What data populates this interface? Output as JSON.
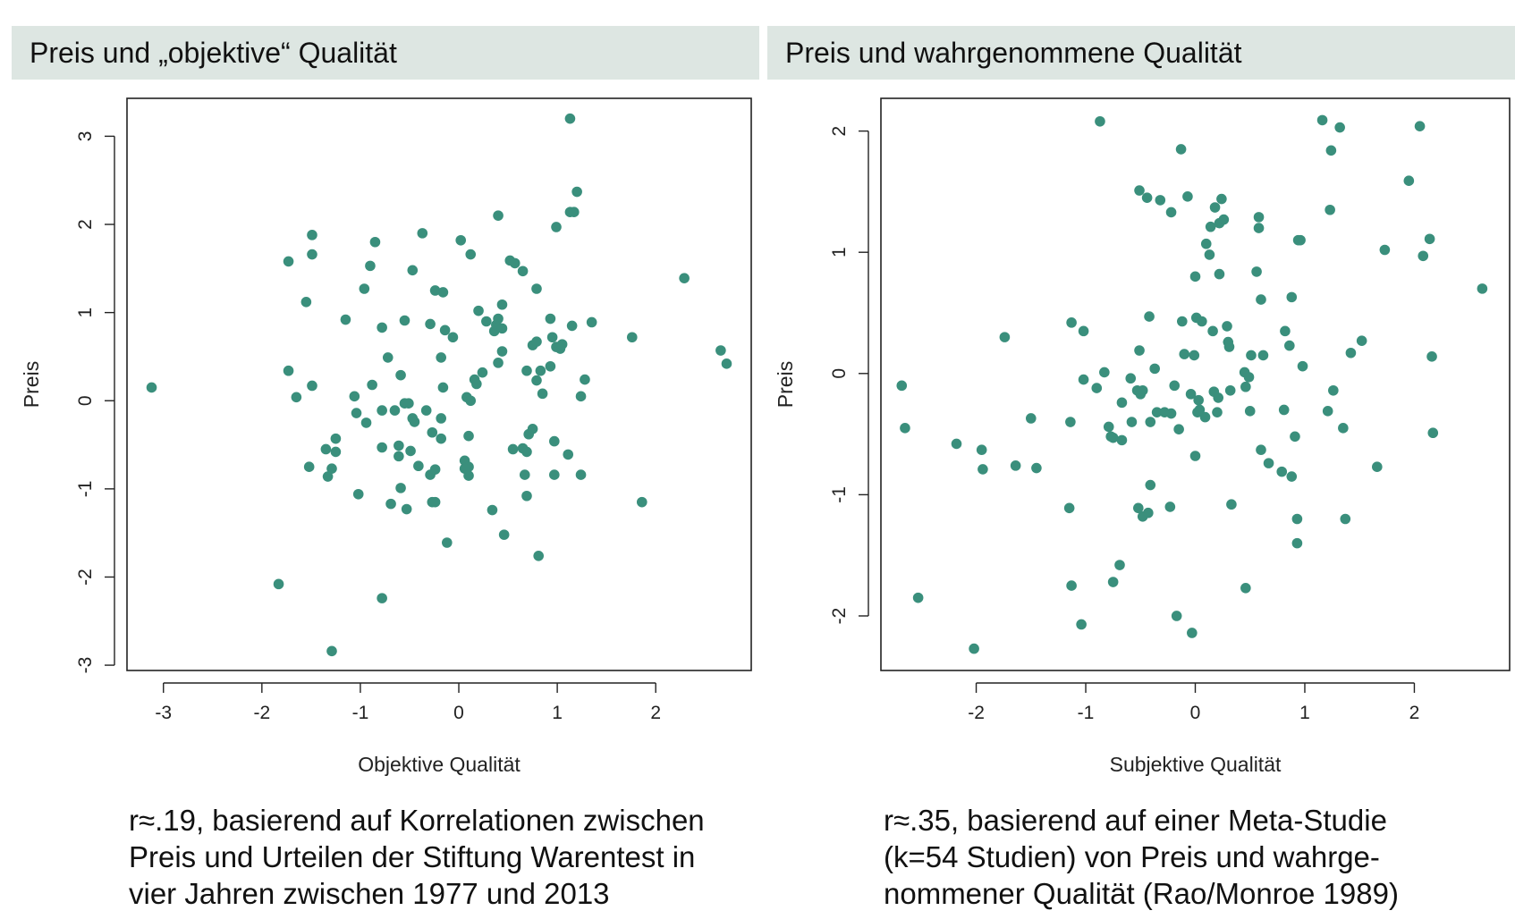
{
  "colors": {
    "point": "#3a8f7c",
    "title_bg": "#dde6e2",
    "axis": "#222222"
  },
  "panels": [
    {
      "title": "Preis und „objektive“ Qualität",
      "caption_lines": [
        "r≈.19, basierend auf Korrelationen zwischen",
        "Preis und Urteilen der Stiftung Warentest in",
        "vier Jahren zwischen 1977 und 2013"
      ]
    },
    {
      "title": "Preis und wahrgenommene Qualität",
      "caption_lines": [
        "r≈.35, basierend auf einer Meta-Studie",
        "(k=54 Studien) von Preis und wahrge-",
        "nommener Qualität (Rao/Monroe 1989)"
      ]
    }
  ],
  "chart_data": [
    {
      "type": "scatter",
      "xlabel": "Objektive Qualität",
      "ylabel": "Preis",
      "xlim": [
        -3.37,
        2.97
      ],
      "ylim": [
        -3.06,
        3.43
      ],
      "xticks": [
        -3,
        -2,
        -1,
        0,
        1,
        2
      ],
      "yticks": [
        -3,
        -2,
        -1,
        0,
        1,
        2,
        3
      ],
      "grid": false,
      "points": [
        [
          -3.12,
          0.15
        ],
        [
          -1.83,
          -2.08
        ],
        [
          -1.73,
          1.58
        ],
        [
          -1.73,
          0.34
        ],
        [
          -1.65,
          0.04
        ],
        [
          -1.55,
          1.12
        ],
        [
          -1.52,
          -0.75
        ],
        [
          -1.49,
          1.88
        ],
        [
          -1.49,
          1.66
        ],
        [
          -1.49,
          0.17
        ],
        [
          -1.35,
          -0.55
        ],
        [
          -1.33,
          -0.86
        ],
        [
          -1.29,
          -0.77
        ],
        [
          -1.29,
          -2.84
        ],
        [
          -1.25,
          -0.43
        ],
        [
          -1.25,
          -0.58
        ],
        [
          -1.15,
          0.92
        ],
        [
          -1.06,
          0.05
        ],
        [
          -1.04,
          -0.14
        ],
        [
          -1.02,
          -1.06
        ],
        [
          -0.96,
          1.27
        ],
        [
          -0.94,
          -0.25
        ],
        [
          -0.9,
          1.53
        ],
        [
          -0.88,
          0.18
        ],
        [
          -0.85,
          1.8
        ],
        [
          -0.78,
          0.83
        ],
        [
          -0.78,
          -0.11
        ],
        [
          -0.78,
          -0.53
        ],
        [
          -0.78,
          -2.24
        ],
        [
          -0.72,
          0.49
        ],
        [
          -0.69,
          -1.17
        ],
        [
          -0.65,
          -0.11
        ],
        [
          -0.61,
          -0.51
        ],
        [
          -0.61,
          -0.63
        ],
        [
          -0.59,
          0.29
        ],
        [
          -0.59,
          -0.99
        ],
        [
          -0.55,
          0.91
        ],
        [
          -0.55,
          -0.03
        ],
        [
          -0.53,
          -1.23
        ],
        [
          -0.51,
          -0.03
        ],
        [
          -0.49,
          -0.57
        ],
        [
          -0.47,
          -0.2
        ],
        [
          -0.47,
          1.48
        ],
        [
          -0.45,
          -0.24
        ],
        [
          -0.41,
          -0.74
        ],
        [
          -0.37,
          1.9
        ],
        [
          -0.33,
          -0.11
        ],
        [
          -0.29,
          0.87
        ],
        [
          -0.29,
          -0.84
        ],
        [
          -0.27,
          -0.36
        ],
        [
          -0.27,
          -1.15
        ],
        [
          -0.24,
          1.25
        ],
        [
          -0.24,
          -1.15
        ],
        [
          -0.24,
          -0.78
        ],
        [
          -0.18,
          -0.2
        ],
        [
          -0.18,
          -0.43
        ],
        [
          -0.18,
          0.49
        ],
        [
          -0.16,
          0.15
        ],
        [
          -0.16,
          1.23
        ],
        [
          -0.14,
          0.8
        ],
        [
          -0.12,
          -1.61
        ],
        [
          -0.06,
          0.72
        ],
        [
          0.02,
          1.82
        ],
        [
          0.06,
          -0.68
        ],
        [
          0.08,
          0.04
        ],
        [
          0.1,
          -0.4
        ],
        [
          0.1,
          -0.75
        ],
        [
          0.1,
          -0.85
        ],
        [
          0.12,
          1.66
        ],
        [
          0.12,
          0.0
        ],
        [
          0.16,
          0.24
        ],
        [
          0.18,
          0.19
        ],
        [
          0.2,
          1.02
        ],
        [
          0.24,
          0.32
        ],
        [
          0.28,
          0.9
        ],
        [
          0.34,
          -1.24
        ],
        [
          0.36,
          0.79
        ],
        [
          0.38,
          0.86
        ],
        [
          0.4,
          0.93
        ],
        [
          0.4,
          0.43
        ],
        [
          0.4,
          2.1
        ],
        [
          0.44,
          0.56
        ],
        [
          0.44,
          1.09
        ],
        [
          0.44,
          0.82
        ],
        [
          0.46,
          -1.52
        ],
        [
          0.52,
          1.59
        ],
        [
          0.57,
          1.56
        ],
        [
          0.65,
          -0.54
        ],
        [
          0.65,
          1.47
        ],
        [
          0.67,
          -0.84
        ],
        [
          0.69,
          0.34
        ],
        [
          0.69,
          -0.58
        ],
        [
          0.69,
          -1.08
        ],
        [
          0.71,
          -0.38
        ],
        [
          0.75,
          0.63
        ],
        [
          0.75,
          -0.32
        ],
        [
          0.79,
          0.67
        ],
        [
          0.79,
          1.27
        ],
        [
          0.81,
          -1.76
        ],
        [
          0.83,
          0.34
        ],
        [
          0.85,
          0.08
        ],
        [
          0.93,
          0.39
        ],
        [
          0.93,
          0.93
        ],
        [
          0.95,
          0.72
        ],
        [
          0.97,
          -0.46
        ],
        [
          0.97,
          -0.84
        ],
        [
          0.99,
          1.97
        ],
        [
          0.99,
          0.61
        ],
        [
          1.03,
          0.59
        ],
        [
          1.05,
          0.64
        ],
        [
          1.11,
          -0.61
        ],
        [
          1.13,
          3.2
        ],
        [
          1.15,
          0.85
        ],
        [
          1.17,
          2.14
        ],
        [
          1.2,
          2.37
        ],
        [
          1.24,
          0.05
        ],
        [
          1.24,
          -0.84
        ],
        [
          1.28,
          0.24
        ],
        [
          1.35,
          0.89
        ],
        [
          1.76,
          0.72
        ],
        [
          1.86,
          -1.15
        ],
        [
          2.29,
          1.39
        ],
        [
          2.66,
          0.57
        ],
        [
          2.72,
          0.42
        ],
        [
          1.13,
          2.14
        ],
        [
          0.79,
          0.23
        ],
        [
          0.55,
          -0.55
        ],
        [
          0.06,
          -0.77
        ]
      ]
    },
    {
      "type": "scatter",
      "xlabel": "Subjektive Qualität",
      "ylabel": "Preis",
      "xlim": [
        -2.87,
        2.87
      ],
      "ylim": [
        -2.45,
        2.27
      ],
      "xticks": [
        -2,
        -1,
        0,
        1,
        2
      ],
      "yticks": [
        -2,
        -1,
        0,
        1,
        2
      ],
      "grid": false,
      "points": [
        [
          -2.68,
          -0.1
        ],
        [
          -2.65,
          -0.45
        ],
        [
          -2.53,
          -1.85
        ],
        [
          -2.18,
          -0.58
        ],
        [
          -2.02,
          -2.27
        ],
        [
          -1.95,
          -0.63
        ],
        [
          -1.94,
          -0.79
        ],
        [
          -1.74,
          0.3
        ],
        [
          -1.64,
          -0.76
        ],
        [
          -1.5,
          -0.37
        ],
        [
          -1.45,
          -0.78
        ],
        [
          -1.15,
          -1.11
        ],
        [
          -1.14,
          -0.4
        ],
        [
          -1.13,
          0.42
        ],
        [
          -1.13,
          -1.75
        ],
        [
          -1.04,
          -2.07
        ],
        [
          -1.02,
          0.35
        ],
        [
          -1.02,
          -0.05
        ],
        [
          -0.9,
          -0.12
        ],
        [
          -0.87,
          2.08
        ],
        [
          -0.83,
          0.01
        ],
        [
          -0.79,
          -0.44
        ],
        [
          -0.75,
          -0.53
        ],
        [
          -0.75,
          -1.72
        ],
        [
          -0.69,
          -1.58
        ],
        [
          -0.67,
          -0.24
        ],
        [
          -0.67,
          -0.55
        ],
        [
          -0.59,
          -0.04
        ],
        [
          -0.58,
          -0.4
        ],
        [
          -0.53,
          -0.14
        ],
        [
          -0.52,
          -1.11
        ],
        [
          -0.51,
          1.51
        ],
        [
          -0.51,
          0.19
        ],
        [
          -0.5,
          -0.17
        ],
        [
          -0.48,
          -1.18
        ],
        [
          -0.44,
          1.45
        ],
        [
          -0.43,
          -1.15
        ],
        [
          -0.42,
          0.47
        ],
        [
          -0.41,
          -0.92
        ],
        [
          -0.41,
          -0.4
        ],
        [
          -0.37,
          0.04
        ],
        [
          -0.35,
          -0.32
        ],
        [
          -0.32,
          1.43
        ],
        [
          -0.28,
          -0.32
        ],
        [
          -0.23,
          -1.1
        ],
        [
          -0.22,
          1.33
        ],
        [
          -0.22,
          -0.33
        ],
        [
          -0.19,
          -0.1
        ],
        [
          -0.17,
          -2.0
        ],
        [
          -0.15,
          -0.46
        ],
        [
          -0.13,
          1.85
        ],
        [
          -0.12,
          0.43
        ],
        [
          -0.1,
          0.16
        ],
        [
          -0.07,
          1.46
        ],
        [
          -0.04,
          -0.17
        ],
        [
          -0.03,
          -2.14
        ],
        [
          -0.01,
          0.15
        ],
        [
          0.0,
          0.8
        ],
        [
          0.0,
          -0.68
        ],
        [
          0.01,
          0.46
        ],
        [
          0.03,
          -0.22
        ],
        [
          0.04,
          -0.3
        ],
        [
          0.06,
          0.43
        ],
        [
          0.09,
          -0.36
        ],
        [
          0.1,
          1.07
        ],
        [
          0.13,
          0.98
        ],
        [
          0.14,
          1.21
        ],
        [
          0.16,
          0.35
        ],
        [
          0.17,
          -0.15
        ],
        [
          0.18,
          1.37
        ],
        [
          0.2,
          -0.32
        ],
        [
          0.21,
          -0.2
        ],
        [
          0.22,
          1.24
        ],
        [
          0.22,
          0.82
        ],
        [
          0.24,
          1.44
        ],
        [
          0.26,
          1.27
        ],
        [
          0.29,
          0.39
        ],
        [
          0.3,
          0.26
        ],
        [
          0.31,
          0.22
        ],
        [
          0.32,
          -0.14
        ],
        [
          0.33,
          -1.08
        ],
        [
          0.45,
          0.01
        ],
        [
          0.46,
          -0.11
        ],
        [
          0.46,
          -1.77
        ],
        [
          0.49,
          -0.03
        ],
        [
          0.5,
          -0.31
        ],
        [
          0.51,
          0.15
        ],
        [
          0.56,
          0.84
        ],
        [
          0.58,
          1.29
        ],
        [
          0.58,
          1.2
        ],
        [
          0.6,
          -0.63
        ],
        [
          0.6,
          0.61
        ],
        [
          0.62,
          0.15
        ],
        [
          0.67,
          -0.74
        ],
        [
          0.79,
          -0.81
        ],
        [
          0.81,
          -0.3
        ],
        [
          0.82,
          0.35
        ],
        [
          0.86,
          0.23
        ],
        [
          0.88,
          -0.85
        ],
        [
          0.88,
          0.63
        ],
        [
          0.91,
          -0.52
        ],
        [
          0.93,
          -1.2
        ],
        [
          0.93,
          -1.4
        ],
        [
          0.94,
          1.1
        ],
        [
          0.96,
          1.1
        ],
        [
          0.98,
          0.06
        ],
        [
          1.16,
          2.09
        ],
        [
          1.21,
          -0.31
        ],
        [
          1.23,
          1.35
        ],
        [
          1.24,
          1.84
        ],
        [
          1.26,
          -0.14
        ],
        [
          1.32,
          2.03
        ],
        [
          1.35,
          -0.45
        ],
        [
          1.37,
          -1.2
        ],
        [
          1.42,
          0.17
        ],
        [
          1.52,
          0.27
        ],
        [
          1.66,
          -0.77
        ],
        [
          1.73,
          1.02
        ],
        [
          1.95,
          1.59
        ],
        [
          2.05,
          2.04
        ],
        [
          2.08,
          0.97
        ],
        [
          2.14,
          1.11
        ],
        [
          2.16,
          0.14
        ],
        [
          2.17,
          -0.49
        ],
        [
          2.62,
          0.7
        ],
        [
          -0.77,
          -0.52
        ],
        [
          0.02,
          -0.32
        ],
        [
          -0.48,
          -0.14
        ]
      ]
    }
  ]
}
